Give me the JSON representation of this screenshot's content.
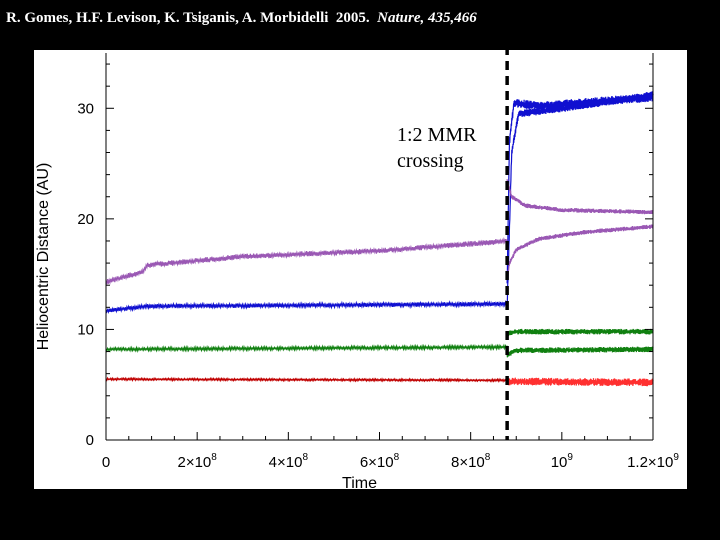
{
  "citation": {
    "authors": "R. Gomes, H.F. Levison, K. Tsiganis, A. Morbidelli",
    "year": "2005.",
    "journal": "Nature, 435,466"
  },
  "chart_data": {
    "type": "line",
    "title": "",
    "xlabel": "Time",
    "ylabel": "Heliocentric Distance (AU)",
    "xlim": [
      0,
      1200000000
    ],
    "ylim": [
      0,
      35
    ],
    "x_ticks": [
      {
        "value": 0,
        "label": "0"
      },
      {
        "value": 200000000,
        "base": "2×10",
        "exp": "8"
      },
      {
        "value": 400000000,
        "base": "4×10",
        "exp": "8"
      },
      {
        "value": 600000000,
        "base": "6×10",
        "exp": "8"
      },
      {
        "value": 800000000,
        "base": "8×10",
        "exp": "8"
      },
      {
        "value": 1000000000,
        "base": "10",
        "exp": "9"
      },
      {
        "value": 1200000000,
        "base": "1.2×10",
        "exp": "9"
      }
    ],
    "y_ticks": [
      0,
      10,
      20,
      30
    ],
    "grid": false,
    "event": {
      "x": 880000000,
      "label_lines": [
        "1:2 MMR",
        "crossing"
      ],
      "style": "dashed-black"
    },
    "series": [
      {
        "color": "#c00000",
        "x": [
          0,
          880000000
        ],
        "y": [
          5.5,
          5.4
        ],
        "spread": 0.1
      },
      {
        "color": "#ff3030",
        "x": [
          880000000,
          1200000000
        ],
        "y": [
          5.3,
          5.2
        ],
        "spread": 0.35
      },
      {
        "color": "#108010",
        "x": [
          0,
          880000000
        ],
        "y": [
          8.2,
          8.4
        ],
        "spread": 0.15
      },
      {
        "color": "#108010",
        "x": [
          880000000,
          900000000,
          1200000000
        ],
        "y": [
          9.6,
          9.8,
          9.8
        ],
        "spread": 0.25
      },
      {
        "color": "#108010",
        "x": [
          880000000,
          900000000,
          1200000000
        ],
        "y": [
          7.7,
          8.1,
          8.2
        ],
        "spread": 0.25
      },
      {
        "color": "#1010d0",
        "x": [
          0,
          90000000,
          880000000
        ],
        "y": [
          11.7,
          12.1,
          12.3
        ],
        "spread": 0.2
      },
      {
        "color": "#1010d0",
        "x": [
          880000000,
          885000000,
          895000000,
          950000000,
          1200000000
        ],
        "y": [
          14,
          27,
          30.5,
          30.2,
          31
        ],
        "spread": 0.4
      },
      {
        "color": "#1010d0",
        "x": [
          880000000,
          890000000,
          905000000,
          1000000000,
          1200000000
        ],
        "y": [
          12,
          26,
          29.5,
          30,
          31.2
        ],
        "spread": 0.35
      },
      {
        "color": "#9a58b4",
        "x": [
          0,
          80000000,
          90000000,
          300000000,
          600000000,
          880000000
        ],
        "y": [
          14.3,
          15.2,
          15.8,
          16.6,
          17.1,
          18.0
        ],
        "spread": 0.25
      },
      {
        "color": "#9a58b4",
        "x": [
          880000000,
          890000000,
          920000000,
          1000000000,
          1200000000
        ],
        "y": [
          23.5,
          22,
          21.2,
          20.8,
          20.6
        ],
        "spread": 0.2
      },
      {
        "color": "#9a58b4",
        "x": [
          880000000,
          885000000,
          900000000,
          950000000,
          1050000000,
          1200000000
        ],
        "y": [
          14.5,
          16,
          17.2,
          18.2,
          18.8,
          19.3
        ],
        "spread": 0.2
      }
    ]
  }
}
